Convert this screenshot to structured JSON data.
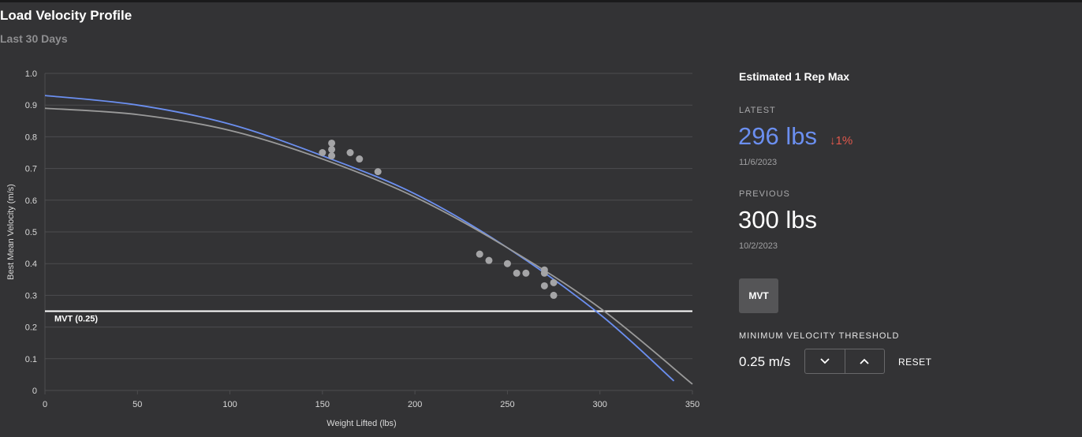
{
  "header": {
    "title": "Load Velocity Profile",
    "subtitle": "Last 30 Days"
  },
  "chart_data": {
    "type": "scatter",
    "xlabel": "Weight Lifted (lbs)",
    "ylabel": "Best Mean Velocity (m/s)",
    "xlim": [
      0,
      350
    ],
    "ylim": [
      0,
      1.0
    ],
    "xticks": [
      "0",
      "50",
      "100",
      "150",
      "200",
      "250",
      "300",
      "350"
    ],
    "yticks": [
      "0",
      "0.1",
      "0.2",
      "0.3",
      "0.4",
      "0.5",
      "0.6",
      "0.7",
      "0.8",
      "0.9",
      "1.0"
    ],
    "grid": true,
    "points": [
      {
        "x": 150,
        "y": 0.75
      },
      {
        "x": 155,
        "y": 0.78
      },
      {
        "x": 155,
        "y": 0.76
      },
      {
        "x": 155,
        "y": 0.74
      },
      {
        "x": 165,
        "y": 0.75
      },
      {
        "x": 170,
        "y": 0.73
      },
      {
        "x": 180,
        "y": 0.69
      },
      {
        "x": 235,
        "y": 0.43
      },
      {
        "x": 240,
        "y": 0.41
      },
      {
        "x": 250,
        "y": 0.4
      },
      {
        "x": 255,
        "y": 0.37
      },
      {
        "x": 260,
        "y": 0.37
      },
      {
        "x": 270,
        "y": 0.38
      },
      {
        "x": 270,
        "y": 0.37
      },
      {
        "x": 270,
        "y": 0.33
      },
      {
        "x": 275,
        "y": 0.34
      },
      {
        "x": 275,
        "y": 0.3
      }
    ],
    "series": [
      {
        "color": "#6b8ff0",
        "x": [
          0,
          50,
          100,
          150,
          200,
          250,
          300,
          340
        ],
        "y": [
          0.93,
          0.9,
          0.84,
          0.74,
          0.62,
          0.45,
          0.24,
          0.03
        ]
      },
      {
        "color": "#9a9a9a",
        "x": [
          0,
          50,
          100,
          150,
          200,
          250,
          300,
          350
        ],
        "y": [
          0.89,
          0.87,
          0.82,
          0.73,
          0.61,
          0.45,
          0.26,
          0.02
        ]
      }
    ],
    "threshold": {
      "value": 0.25,
      "label": "MVT (0.25)"
    },
    "colors": {
      "points": "#a4a4a6",
      "grid": "#4d4d4f",
      "threshold": "#ffffff",
      "text": "#d8d8d8"
    }
  },
  "panel": {
    "title": "Estimated 1 Rep Max",
    "latest_label": "LATEST",
    "latest_value": "296 lbs",
    "change_icon": "arrow-down-icon",
    "change_value": "1%",
    "latest_date": "11/6/2023",
    "previous_label": "PREVIOUS",
    "previous_value": "300 lbs",
    "previous_date": "10/2/2023",
    "mvt_button": "MVT",
    "mvt_heading": "MINIMUM VELOCITY THRESHOLD",
    "mvt_value": "0.25 m/s",
    "reset_label": "RESET",
    "colors": {
      "accent": "#6b8ff0",
      "decrease": "#e0584c"
    }
  }
}
